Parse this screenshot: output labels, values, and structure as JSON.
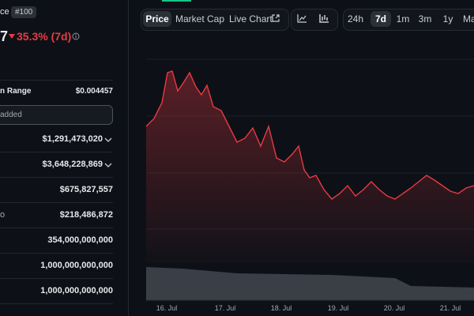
{
  "header": {
    "name_fragment": "ce",
    "rank": "#100",
    "price_fragment": "7",
    "change": "35.3% (7d)"
  },
  "range": {
    "label": "n Range",
    "value": "$0.004457"
  },
  "watchlist": "added",
  "stats": [
    {
      "label": "",
      "value": "$1,291,473,020"
    },
    {
      "label": "",
      "value": "$3,648,228,869"
    },
    {
      "label": "",
      "value": "$675,827,557"
    },
    {
      "label": "o",
      "value": "$218,486,872"
    },
    {
      "label": "",
      "value": "354,000,000,000"
    },
    {
      "label": "",
      "value": "1,000,000,000,000"
    },
    {
      "label": "",
      "value": "1,000,000,000,000"
    }
  ],
  "tabs": [
    "Price",
    "Market Cap",
    "Live Chart"
  ],
  "periods": [
    "24h",
    "7d",
    "1m",
    "3m",
    "1y",
    "Ma"
  ],
  "dates": [
    "16. Jul",
    "17. Jul",
    "18. Jul",
    "19. Jul",
    "20. Jul",
    "21. Jul"
  ]
}
